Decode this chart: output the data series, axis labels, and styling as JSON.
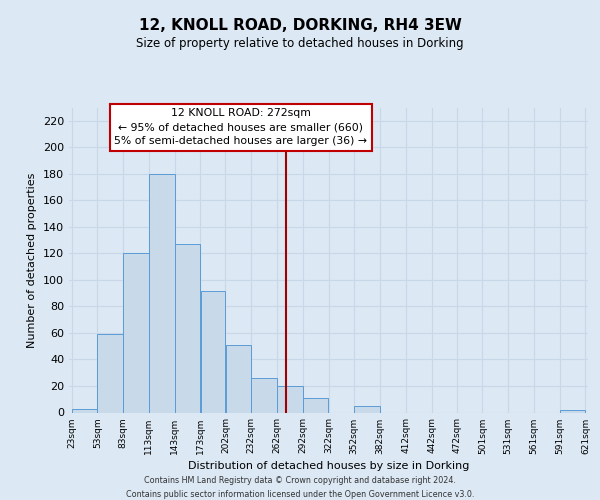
{
  "title": "12, KNOLL ROAD, DORKING, RH4 3EW",
  "subtitle": "Size of property relative to detached houses in Dorking",
  "xlabel": "Distribution of detached houses by size in Dorking",
  "ylabel": "Number of detached properties",
  "bar_left_edges": [
    23,
    53,
    83,
    113,
    143,
    173,
    202,
    232,
    262,
    292,
    322,
    352,
    382,
    412,
    442,
    472,
    501,
    531,
    561,
    591
  ],
  "bar_widths": [
    30,
    30,
    30,
    30,
    30,
    29,
    30,
    30,
    30,
    30,
    30,
    30,
    30,
    30,
    30,
    29,
    30,
    30,
    30,
    30
  ],
  "bar_heights": [
    3,
    59,
    120,
    180,
    127,
    92,
    51,
    26,
    20,
    11,
    0,
    5,
    0,
    0,
    0,
    0,
    0,
    0,
    0,
    2
  ],
  "bar_color": "#c8d9ea",
  "bar_edge_color": "#5b9bd5",
  "tick_labels": [
    "23sqm",
    "53sqm",
    "83sqm",
    "113sqm",
    "143sqm",
    "173sqm",
    "202sqm",
    "232sqm",
    "262sqm",
    "292sqm",
    "322sqm",
    "352sqm",
    "382sqm",
    "412sqm",
    "442sqm",
    "472sqm",
    "501sqm",
    "531sqm",
    "561sqm",
    "591sqm",
    "621sqm"
  ],
  "vline_x": 272,
  "vline_color": "#a00000",
  "ylim": [
    0,
    230
  ],
  "yticks": [
    0,
    20,
    40,
    60,
    80,
    100,
    120,
    140,
    160,
    180,
    200,
    220
  ],
  "annotation_title": "12 KNOLL ROAD: 272sqm",
  "annotation_line1": "← 95% of detached houses are smaller (660)",
  "annotation_line2": "5% of semi-detached houses are larger (36) →",
  "annotation_box_color": "#ffffff",
  "annotation_box_edge": "#c00000",
  "grid_color": "#c8d8e8",
  "bg_color": "#dce8f4",
  "footer1": "Contains HM Land Registry data © Crown copyright and database right 2024.",
  "footer2": "Contains public sector information licensed under the Open Government Licence v3.0."
}
